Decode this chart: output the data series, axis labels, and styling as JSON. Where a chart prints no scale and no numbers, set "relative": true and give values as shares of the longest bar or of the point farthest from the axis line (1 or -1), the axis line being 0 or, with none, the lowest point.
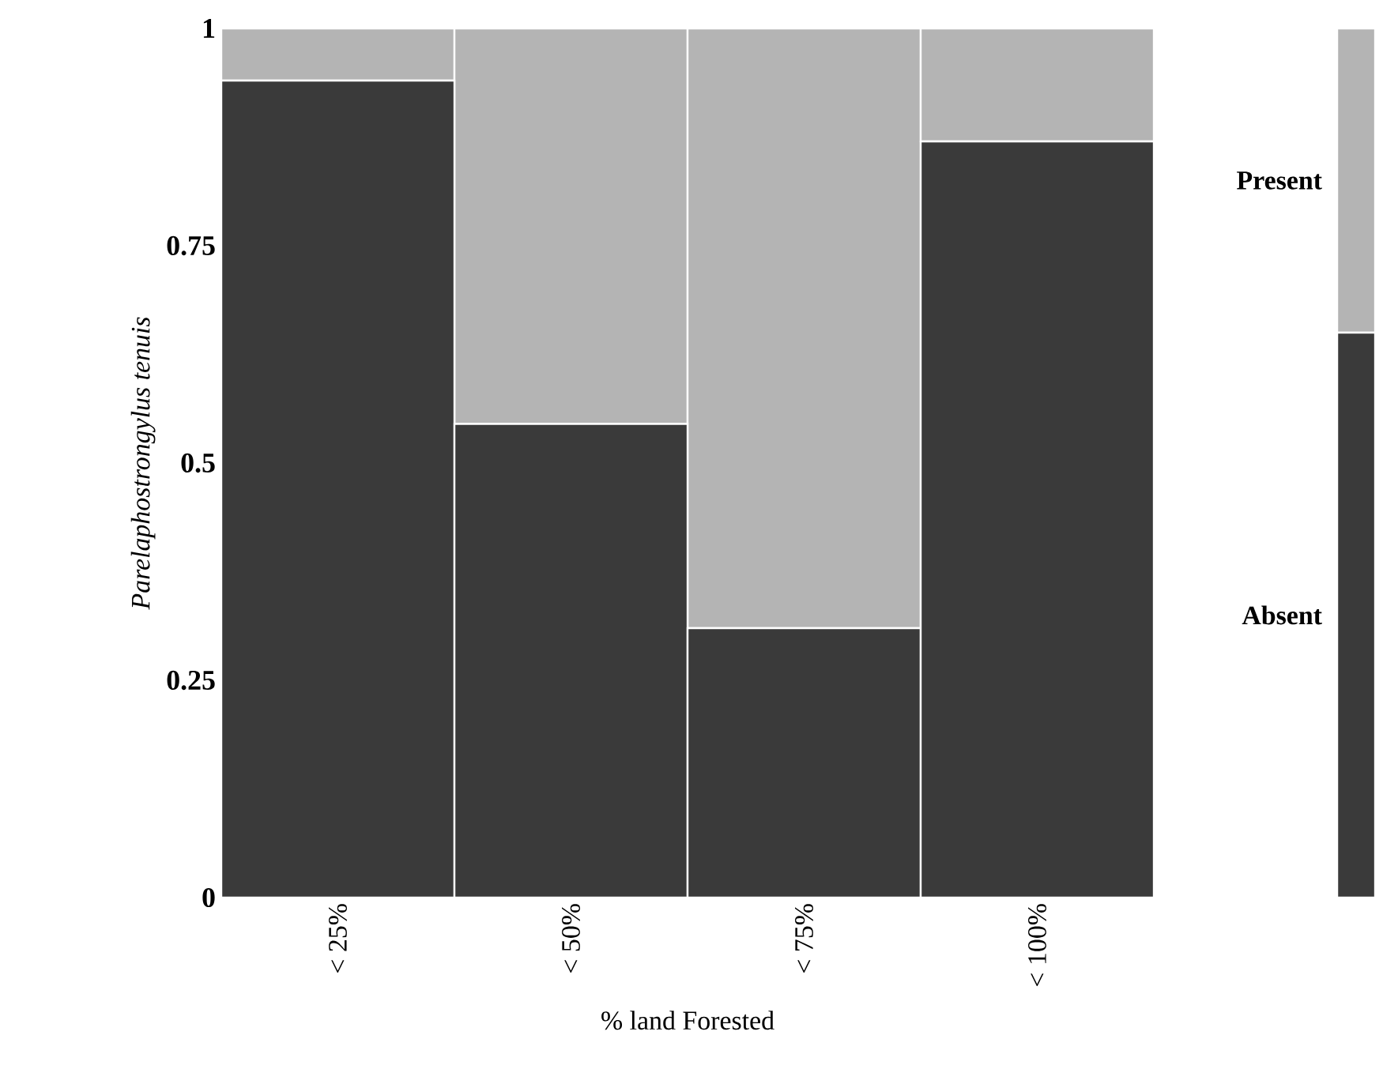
{
  "chart_data": [
    {
      "type": "bar",
      "stacked": true,
      "xlabel": "% land Forested",
      "ylabel": "Parelaphostrongylus tenuis",
      "categories": [
        "< 25%",
        "< 50%",
        "< 75%",
        "< 100%"
      ],
      "ylim": [
        0,
        1
      ],
      "yticks": [
        0,
        0.25,
        0.5,
        0.75,
        1
      ],
      "series": [
        {
          "color": "#3a3a3a",
          "values": [
            0.94,
            0.545,
            0.31,
            0.87
          ]
        },
        {
          "color": "#b4b4b4",
          "values": [
            0.06,
            0.455,
            0.69,
            0.13
          ]
        }
      ]
    },
    {
      "type": "bar",
      "stacked": true,
      "relative": true,
      "categories": [
        null
      ],
      "series": [
        {
          "name": "Absent",
          "color": "#3a3a3a",
          "values": [
            0.65
          ]
        },
        {
          "name": "Present",
          "color": "#b4b4b4",
          "values": [
            0.35
          ]
        }
      ]
    }
  ]
}
